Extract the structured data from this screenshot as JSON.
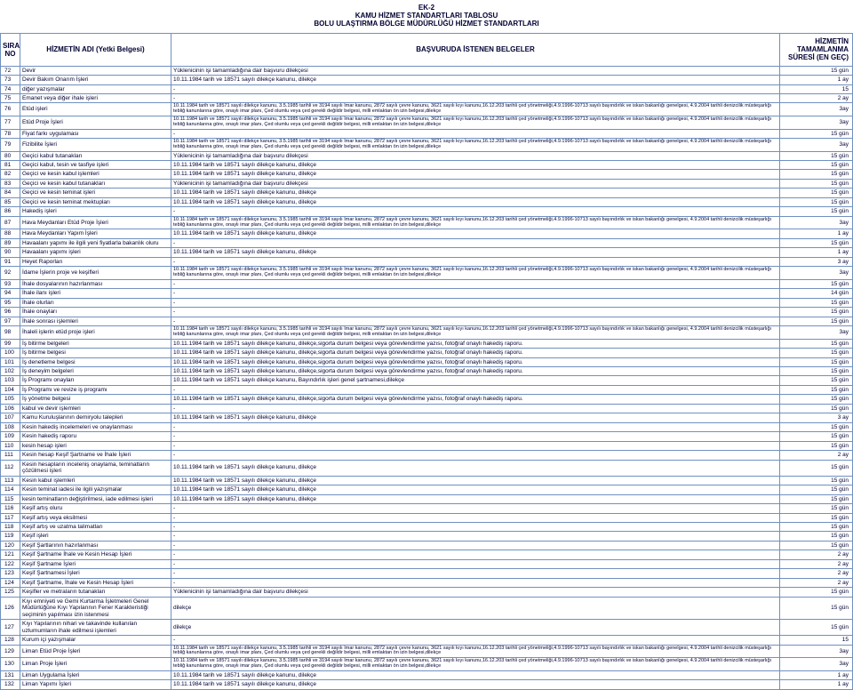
{
  "title_lines": [
    "EK-2",
    "KAMU HİZMET STANDARTLARI TABLOSU",
    "BOLU ULAŞTIRMA BÖLGE MÜDÜRLÜĞÜ  HİZMET STANDARTLARI"
  ],
  "columns": {
    "no": "SIRA\nNO",
    "name": "HİZMETİN ADI\n(Yetki Belgesi)",
    "docs": "BAŞVURUDA İSTENEN BELGELER",
    "dur": "HİZMETİN TAMAMLANMA\nSÜRESİ (EN GEÇ)"
  },
  "long_text_a": "10.11.1984 tarih ve 18571 sayılı dilekçe kanunu, 3.5.1985 tarihli ve 3194 sayılı İmar kanunu, 2872 sayılı çevre kanunu, 3621 sayılı kıyı kanunu,16.12.203 tarihli çed yönetmeliği,4.9.1996-10713 sayılı bayındırlık ve iskan bakanlığı genelgesi, 4.9.2004 tarihli denizcilik müsteşarlığı tebliğ kanunlarına göre, onaylı imar planı, Çed olumlu veya çed gerekli değildir belgesi, milli emlaktan ön izin belgesi,dilekçe",
  "long_text_b": "10.11.1984 tarih ve 18571 sayılı dilekçe kanunu, 3.5.1985 tarihli ve 3194 sayılı İmar kanunu, 2872 sayılı çevre kanunu, 3621 sayılı kıyı kanunu,16.12.203 tarihli çed yönetmeliği,4.9.1996-10713 sayılı bayındırlık ve iskan bakanlığı genelgesi, 4.9.2004 tarihli denizcilik müsteşarlığı tebliğ kanunlarına göre, onaylı imar planı, Çed olumlu veya çed gerekli değildir belgesi, milli emlaktan ön izin belgesi,dilekçe",
  "std_a": "Yüklenicinin işi tamamladığına dair başvuru dilekçesi",
  "std_b": "10.11.1984 tarih ve 18571 sayılı dilekçe kanunu, dilekçe",
  "std_c": "-",
  "std_d": "dilekçe",
  "std_e": "10.11.1984 tarih ve 18571 sayılı dilekçe kanunu, dilekçe,sigorta durum belgesi veya görevlendirme yazısı, fotoğraf onaylı hakediş raporu.",
  "std_f": "10.11.1984 tarih ve 18571 sayılı dilekçe kanunu, Bayındırlık işleri genel şartnamesi,dilekçe",
  "rows": [
    {
      "no": "72",
      "name": "Devir",
      "docs_key": "std_a",
      "dur": "15 gün"
    },
    {
      "no": "73",
      "name": "Devir Bakım Onarım İşleri",
      "docs_key": "std_b",
      "dur": "1 ay"
    },
    {
      "no": "74",
      "name": "diğer yazışmalar",
      "docs_key": "std_c",
      "dur": "15"
    },
    {
      "no": "75",
      "name": "Emanet veya diğer ihale işleri",
      "docs_key": "std_c",
      "dur": "2 ay"
    },
    {
      "no": "76",
      "name": "Etüd işleri",
      "docs_key": "long_text_a",
      "dur": "3ay",
      "long": true
    },
    {
      "no": "77",
      "name": "Etüd Proje İşleri",
      "docs_key": "long_text_a",
      "dur": "3ay",
      "long": true
    },
    {
      "no": "78",
      "name": "Fiyat farkı uygulaması",
      "docs_key": "std_c",
      "dur": "15 gün"
    },
    {
      "no": "79",
      "name": "Fizibilite İşleri",
      "docs_key": "long_text_a",
      "dur": "3ay",
      "long": true
    },
    {
      "no": "80",
      "name": "Geçici kabul tutanakları",
      "docs_key": "std_a",
      "dur": "15 gün"
    },
    {
      "no": "81",
      "name": "Geçici kabul, tesin ve tasfiye işleri",
      "docs_key": "std_b",
      "dur": "15 gün"
    },
    {
      "no": "82",
      "name": "Geçici ve kesin kabul işlemleri",
      "docs_key": "std_b",
      "dur": "15 gün"
    },
    {
      "no": "83",
      "name": "Geçici ve kesin kabul tutanakları",
      "docs_key": "std_a",
      "dur": "15 gün"
    },
    {
      "no": "84",
      "name": "Geçici ve kesin teminat işleri",
      "docs_key": "std_b",
      "dur": "15 gün"
    },
    {
      "no": "85",
      "name": "Geçici ve kesin teminat mektupları",
      "docs_key": "std_b",
      "dur": "15 gün"
    },
    {
      "no": "86",
      "name": "Hakediş işleri",
      "docs_key": "std_c",
      "dur": "15 gün"
    },
    {
      "no": "87",
      "name": "Hava Meydanları Etüd Proje İşleri",
      "docs_key": "long_text_a",
      "dur": "3ay",
      "long": true
    },
    {
      "no": "88",
      "name": "Hava Meydanları Yapım İşleri",
      "docs_key": "std_b",
      "dur": "1 ay"
    },
    {
      "no": "89",
      "name": "Havaalanı yapımı ile ilgili yeni fiyatlarla bakanlık oluru",
      "docs_key": "std_c",
      "dur": "15 gün"
    },
    {
      "no": "90",
      "name": "Havaalanı yapımı işleri",
      "docs_key": "std_b",
      "dur": "1 ay"
    },
    {
      "no": "91",
      "name": "Heyet Raporları",
      "docs_key": "std_c",
      "dur": "3 ay"
    },
    {
      "no": "92",
      "name": "İdame İşlerin proje ve keşifleri",
      "docs_key": "long_text_a",
      "dur": "3ay",
      "long": true
    },
    {
      "no": "93",
      "name": "İhale dosyalarının hazırlanması",
      "docs_key": "std_c",
      "dur": "15 gün"
    },
    {
      "no": "94",
      "name": "İhale ilanı işleri",
      "docs_key": "std_c",
      "dur": "14 gün"
    },
    {
      "no": "95",
      "name": "İhale olurları",
      "docs_key": "std_c",
      "dur": "15 gün"
    },
    {
      "no": "96",
      "name": "İhale onayları",
      "docs_key": "std_c",
      "dur": "15 gün"
    },
    {
      "no": "97",
      "name": "İhale sonrası işlemleri",
      "docs_key": "std_c",
      "dur": "15 gün"
    },
    {
      "no": "98",
      "name": "İhaleli işlerin etüd proje işleri",
      "docs_key": "long_text_a",
      "dur": "3ay",
      "long": true
    },
    {
      "no": "99",
      "name": "İş bitirme belgeleri",
      "docs_key": "std_e",
      "dur": "15 gün"
    },
    {
      "no": "100",
      "name": "İş bitirme belgesi",
      "docs_key": "std_e",
      "dur": "15 gün"
    },
    {
      "no": "101",
      "name": "İş denetleme belgesi",
      "docs_key": "std_e",
      "dur": "15 gün"
    },
    {
      "no": "102",
      "name": "İş deneyim belgeleri",
      "docs_key": "std_e",
      "dur": "15 gün"
    },
    {
      "no": "103",
      "name": "İş Programı onayları",
      "docs_key": "std_f",
      "dur": "15 gün"
    },
    {
      "no": "104",
      "name": "İş Programı ve revize iş programı",
      "docs_key": "std_c",
      "dur": "15 gün"
    },
    {
      "no": "105",
      "name": "İş yönetme belgesi",
      "docs_key": "std_e",
      "dur": "15 gün"
    },
    {
      "no": "106",
      "name": "kabul ve devir işlemleri",
      "docs_key": "std_c",
      "dur": "15 gün"
    },
    {
      "no": "107",
      "name": "Kamu Kuruluşlarının demiryolu talepleri",
      "docs_key": "std_b",
      "dur": "3 ay"
    },
    {
      "no": "108",
      "name": "Kesin hakediş incelemeleri ve onaylanması",
      "docs_key": "std_c",
      "dur": "15 gün"
    },
    {
      "no": "109",
      "name": "Kesin hakediş raporu",
      "docs_key": "std_c",
      "dur": "15 gün"
    },
    {
      "no": "110",
      "name": "kesin hesap işleri",
      "docs_key": "std_c",
      "dur": "15 gün"
    },
    {
      "no": "111",
      "name": "Kesin hesap Keşif Şartname ve İhale İşleri",
      "docs_key": "std_c",
      "dur": "2 ay"
    },
    {
      "no": "112",
      "name": "Kesin hesapların inceleniş onaylama, teminatların çözülmesi işleri",
      "docs_key": "std_b",
      "dur": "15 gün"
    },
    {
      "no": "113",
      "name": "Kesin kabul işlemleri",
      "docs_key": "std_b",
      "dur": "15 gün"
    },
    {
      "no": "114",
      "name": "Kesin teminat iadesi ile ilgili yazışmalar",
      "docs_key": "std_b",
      "dur": "15 gün"
    },
    {
      "no": "115",
      "name": "kesin teminatların değiştirilmesi, iade edilmesi işleri",
      "docs_key": "std_b",
      "dur": "15 gün"
    },
    {
      "no": "116",
      "name": "Keşif artış oluru",
      "docs_key": "std_c",
      "dur": "15 gün"
    },
    {
      "no": "117",
      "name": "Keşif artış veya eksilmesi",
      "docs_key": "std_c",
      "dur": "15 gün"
    },
    {
      "no": "118",
      "name": "Keşif artış ve uzatma talimatları",
      "docs_key": "std_c",
      "dur": "15 gün"
    },
    {
      "no": "119",
      "name": "Keşif işleri",
      "docs_key": "std_c",
      "dur": "15 gün"
    },
    {
      "no": "120",
      "name": "Keşif Şartlarının hazırlanması",
      "docs_key": "std_c",
      "dur": "15 gün"
    },
    {
      "no": "121",
      "name": "Keşif Şartname İhale ve Kesin Hesap İşleri",
      "docs_key": "std_c",
      "dur": "2 ay"
    },
    {
      "no": "122",
      "name": "Keşif Şartname İşleri",
      "docs_key": "std_c",
      "dur": "2 ay"
    },
    {
      "no": "123",
      "name": "Keşif Şartnamesi İşleri",
      "docs_key": "std_c",
      "dur": "2 ay"
    },
    {
      "no": "124",
      "name": "Keşif Şartname, İhale ve Kesin Hesap İşleri",
      "docs_key": "std_c",
      "dur": "2 ay"
    },
    {
      "no": "125",
      "name": "Keşifler ve metraların tutanakları",
      "docs_key": "std_a",
      "dur": "15 gün"
    },
    {
      "no": "126",
      "name": "Kıyı emniyeti ve Gemi Kurtarma İşletmeleri Genel Müdürlüğüne Kıyı Yapılarının Fener Karakteristiği seçiminin yapılması izin istenmesi",
      "docs_key": "std_d",
      "dur": "15 gün"
    },
    {
      "no": "127",
      "name": "Kıyı Yapılarının nihari ve takavinde kullanılan uzlumumların ihale edilmesi işlemleri",
      "docs_key": "std_d",
      "dur": "15 gün"
    },
    {
      "no": "128",
      "name": "Kurum içi yazışmalar",
      "docs_key": "std_c",
      "dur": "15"
    },
    {
      "no": "129",
      "name": "Liman Etüd Proje İşleri",
      "docs_key": "long_text_a",
      "dur": "3ay",
      "long": true
    },
    {
      "no": "130",
      "name": "Liman Proje İşleri",
      "docs_key": "long_text_a",
      "dur": "3ay",
      "long": true
    },
    {
      "no": "131",
      "name": "Liman Uygulama İşleri",
      "docs_key": "std_b",
      "dur": "1 ay"
    },
    {
      "no": "132",
      "name": "Liman Yapımı İşleri",
      "docs_key": "std_b",
      "dur": "1 ay"
    }
  ]
}
